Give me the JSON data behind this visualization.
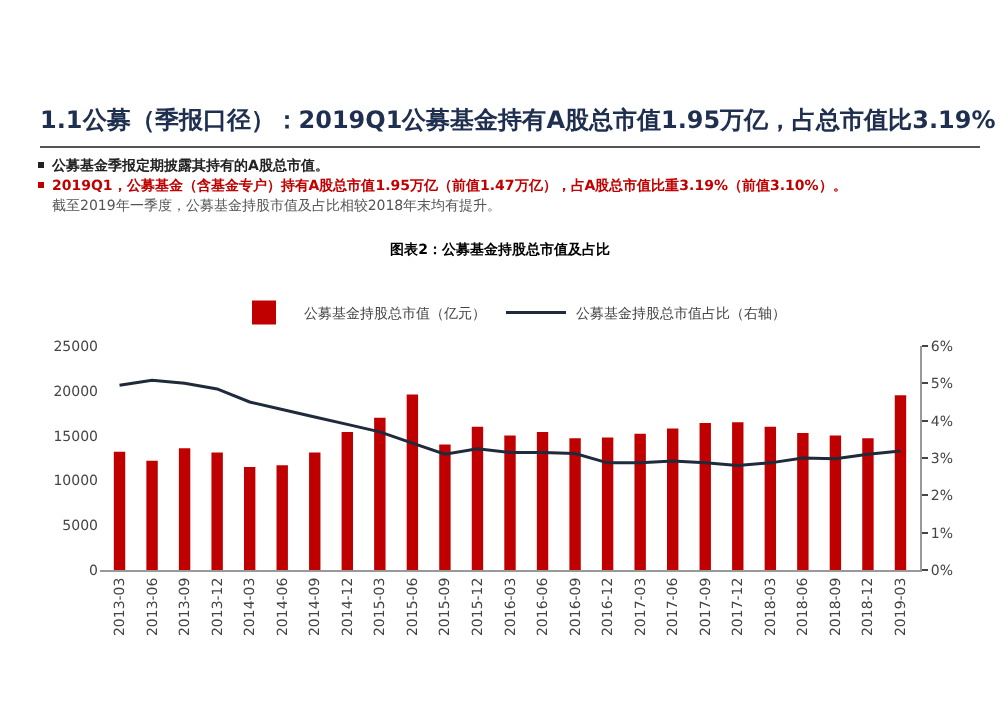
{
  "chart_data": {
    "type": "bar",
    "title": "1.1公募（季报口径）：2019Q1公募基金持有A股总市值1.95万亿，占总市值比3.19%",
    "subtitle": "图表2：公募基金持股总市值及占比",
    "annotations": [
      "公募基金季报定期披露其持有的A股总市值。",
      "2019Q1，公募基金（含基金专户）持有A股总市值1.95万亿（前值1.47万亿），占A股总市值比重3.19%（前值3.10%）。",
      "截至2019年一季度，公募基金持股市值及占比相较2018年末均有提升。"
    ],
    "categories": [
      "2013-03",
      "2013-06",
      "2013-09",
      "2013-12",
      "2014-03",
      "2014-06",
      "2014-09",
      "2014-12",
      "2015-03",
      "2015-06",
      "2015-09",
      "2015-12",
      "2016-03",
      "2016-06",
      "2016-09",
      "2016-12",
      "2017-03",
      "2017-06",
      "2017-09",
      "2017-12",
      "2018-03",
      "2018-06",
      "2018-09",
      "2018-12",
      "2019-03"
    ],
    "series": [
      {
        "name": "公募基金持股总市值（亿元）",
        "color": "#c00000",
        "values": [
          13200,
          12200,
          13600,
          13100,
          11500,
          11700,
          13100,
          15400,
          17000,
          19600,
          14000,
          16000,
          15000,
          15400,
          14700,
          14800,
          15200,
          15800,
          16400,
          16500,
          16000,
          15300,
          15000,
          14700,
          19500
        ]
      },
      {
        "name": "公募基金持股总市值占比（右轴）",
        "type": "line",
        "axis": "y2",
        "color": "#1f2a3a",
        "values": [
          4.95,
          5.08,
          5.0,
          4.85,
          4.5,
          4.3,
          4.1,
          3.9,
          3.7,
          3.4,
          3.1,
          3.25,
          3.15,
          3.15,
          3.12,
          2.87,
          2.87,
          2.92,
          2.87,
          2.8,
          2.87,
          3.0,
          2.98,
          3.1,
          3.19
        ]
      }
    ],
    "ylim": [
      0,
      25000
    ],
    "yticks": [
      0,
      5000,
      10000,
      15000,
      20000,
      25000
    ],
    "y2lim": [
      0,
      6
    ],
    "y2ticks": [
      {
        "value": 0,
        "label": "0%"
      },
      {
        "value": 1,
        "label": "1%"
      },
      {
        "value": 2,
        "label": "2%"
      },
      {
        "value": 3,
        "label": "3%"
      },
      {
        "value": 4,
        "label": "4%"
      },
      {
        "value": 5,
        "label": "5%"
      },
      {
        "value": 6,
        "label": "6%"
      }
    ],
    "legend": "top",
    "grid": false,
    "marker": "none",
    "line_style": "solid"
  }
}
